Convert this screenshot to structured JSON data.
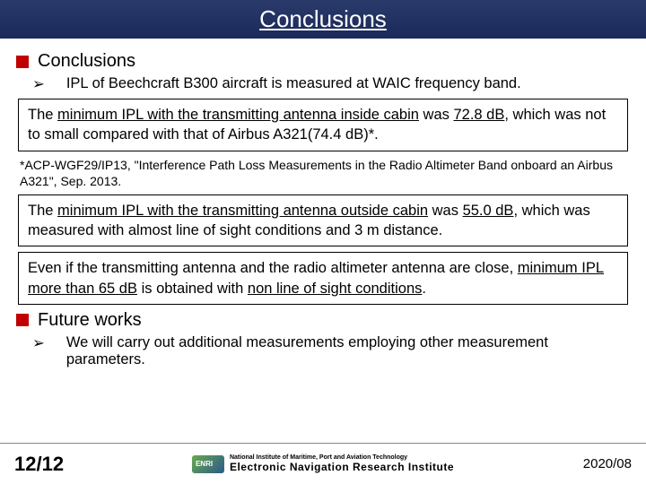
{
  "title": "Conclusions",
  "section1": {
    "heading": "Conclusions",
    "bullet": "IPL of Beechcraft B300 aircraft is measured at WAIC frequency band."
  },
  "box1": {
    "pre": "The ",
    "u1": "minimum IPL with the transmitting antenna inside cabin",
    "mid": " was ",
    "u2": "72.8 dB",
    "post": ", which was not to small compared with that of Airbus A321(74.4 dB)*."
  },
  "footnote": "*ACP-WGF29/IP13, \"Interference Path Loss Measurements in the Radio Altimeter Band onboard an Airbus A321\", Sep. 2013.",
  "box2": {
    "pre": "The ",
    "u1": "minimum IPL with the transmitting antenna outside cabin",
    "mid": " was ",
    "u2": "55.0 dB",
    "post": ", which was measured with almost line of sight conditions and 3 m distance."
  },
  "box3": {
    "pre": "Even if the transmitting antenna and the radio altimeter antenna are close, ",
    "u1": "minimum IPL more than 65 dB",
    "mid": " is obtained with ",
    "u2": "non line of sight conditions",
    "post": "."
  },
  "section2": {
    "heading": "Future works",
    "bullet": "We will carry out additional measurements employing other measurement parameters."
  },
  "footer": {
    "page": "12/12",
    "org_small": "National Institute of Maritime, Port and Aviation Technology",
    "org_main": "Electronic Navigation Research Institute",
    "date": "2020/08"
  }
}
